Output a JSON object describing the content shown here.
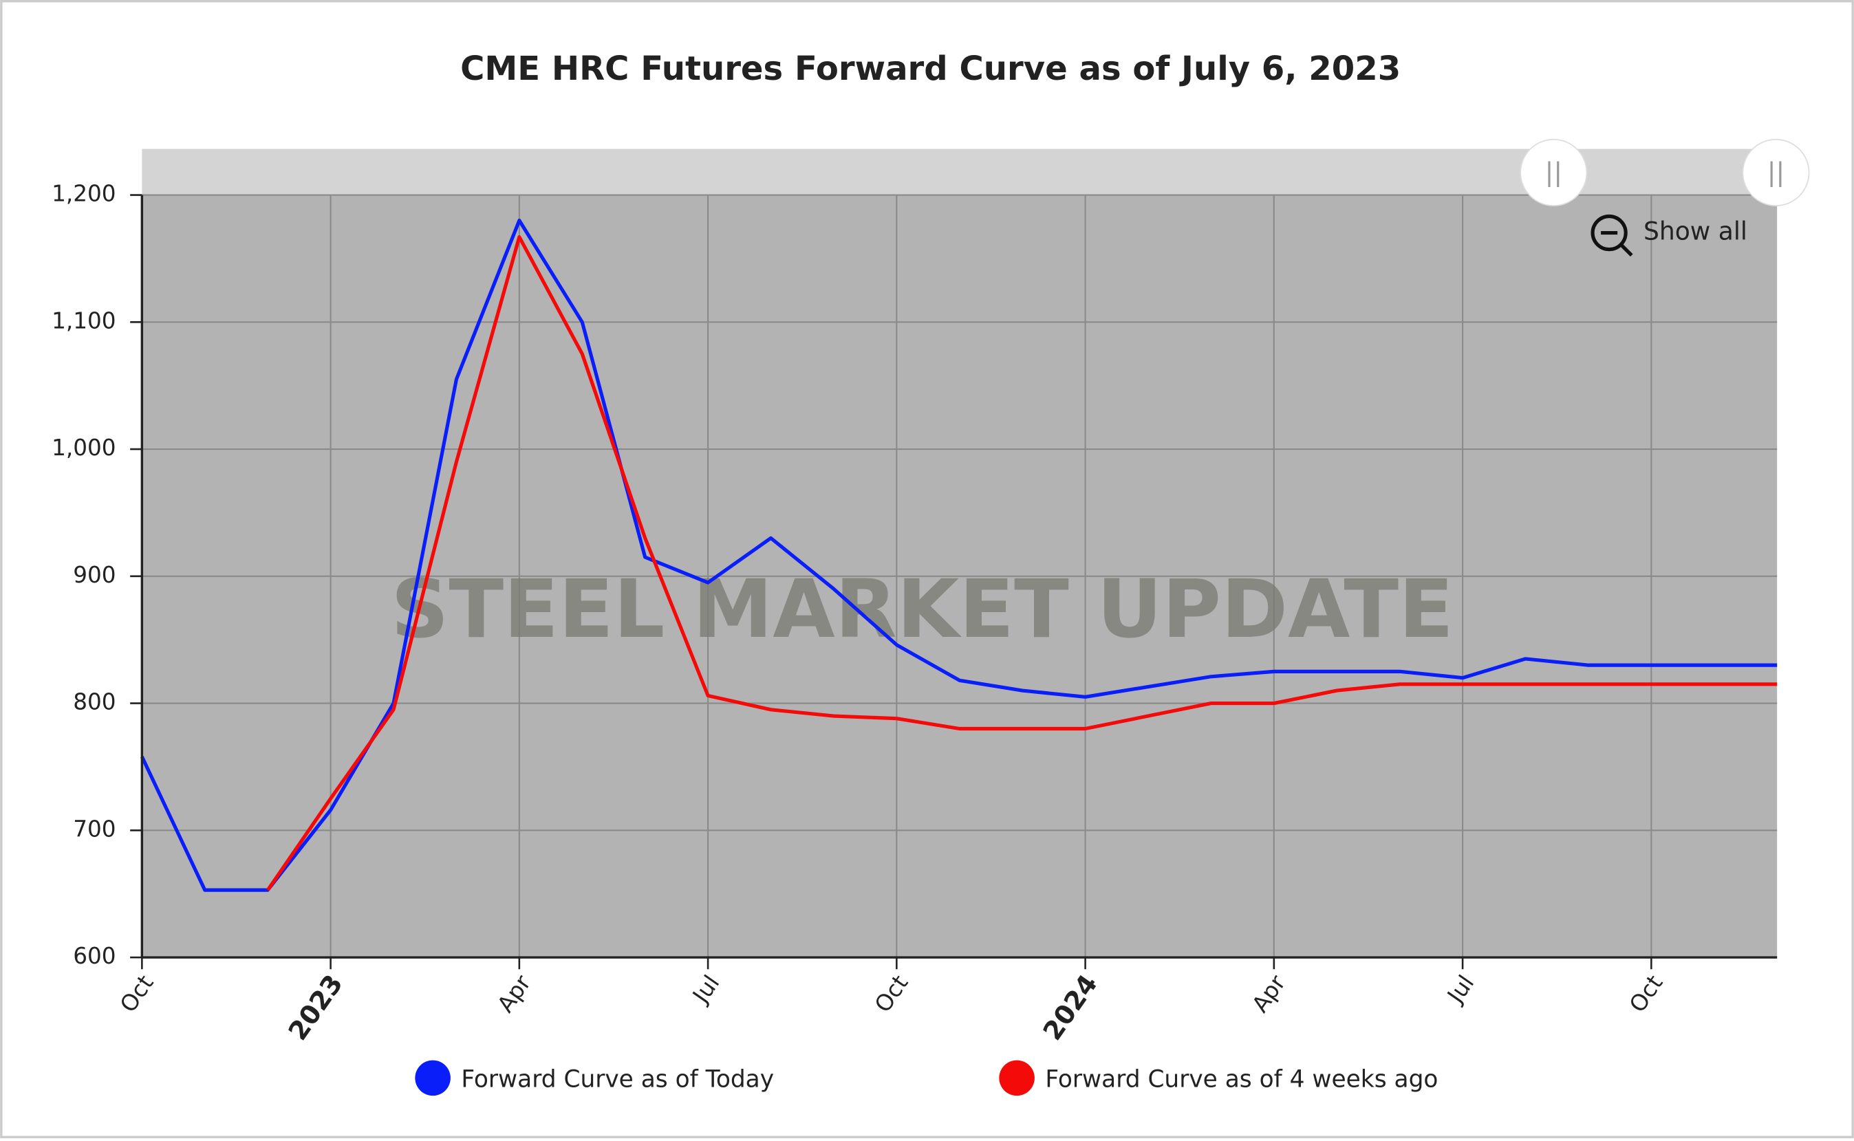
{
  "chart_data": {
    "type": "line",
    "title": "CME HRC Futures Forward Curve as of July 6, 2023",
    "watermark": "STEEL MARKET UPDATE",
    "zoom_button": "Show all",
    "x": [
      "2022-10",
      "2022-11",
      "2022-12",
      "2023-01",
      "2023-02",
      "2023-03",
      "2023-04",
      "2023-05",
      "2023-06",
      "2023-07",
      "2023-08",
      "2023-09",
      "2023-10",
      "2023-11",
      "2023-12",
      "2024-01",
      "2024-02",
      "2024-03",
      "2024-04",
      "2024-05",
      "2024-06",
      "2024-07",
      "2024-08",
      "2024-09",
      "2024-10",
      "2024-11",
      "2024-12"
    ],
    "xticks": [
      {
        "value": "2022-10",
        "label": "Oct"
      },
      {
        "value": "2023-01",
        "label": "2023"
      },
      {
        "value": "2023-04",
        "label": "Apr"
      },
      {
        "value": "2023-07",
        "label": "Jul"
      },
      {
        "value": "2023-10",
        "label": "Oct"
      },
      {
        "value": "2024-01",
        "label": "2024"
      },
      {
        "value": "2024-04",
        "label": "Apr"
      },
      {
        "value": "2024-07",
        "label": "Jul"
      },
      {
        "value": "2024-10",
        "label": "Oct"
      }
    ],
    "ylim": [
      600,
      1200
    ],
    "yticks": [
      600,
      700,
      800,
      900,
      {
        "value": 1000,
        "label": "1,000"
      },
      {
        "value": 1100,
        "label": "1,100"
      },
      {
        "value": 1200,
        "label": "1,200"
      }
    ],
    "grid": true,
    "series": [
      {
        "name": "Forward Curve as of Today",
        "color": "#0a1efa",
        "values": [
          758,
          653,
          653,
          716,
          800,
          1055,
          1180,
          1100,
          915,
          895,
          930,
          890,
          846,
          818,
          810,
          805,
          813,
          821,
          825,
          825,
          825,
          820,
          835,
          830,
          830,
          830,
          830
        ]
      },
      {
        "name": "Forward Curve as of 4 weeks ago",
        "color": "#f50a0a",
        "values": [
          null,
          null,
          653,
          725,
          795,
          990,
          1167,
          1075,
          930,
          806,
          795,
          790,
          788,
          780,
          780,
          780,
          790,
          800,
          800,
          810,
          815,
          815,
          815,
          815,
          815,
          815,
          815
        ]
      }
    ]
  }
}
